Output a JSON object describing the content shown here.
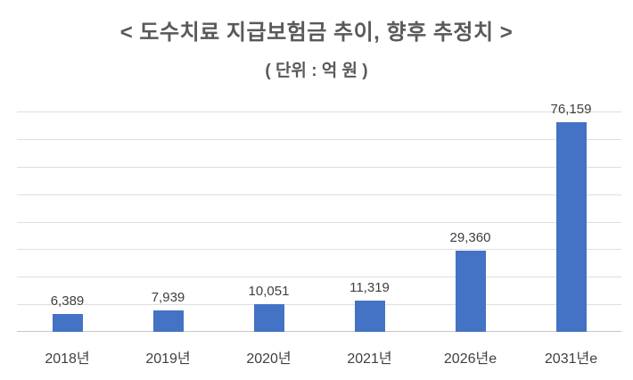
{
  "chart": {
    "title": "< 도수치료 지급보험금 추이, 향후 추정치 >",
    "subtitle": "( 단위 : 억 원 )"
  },
  "chart_data": {
    "type": "bar",
    "title": "< 도수치료 지급보험금 추이, 향후 추정치 >",
    "subtitle": "( 단위 : 억 원 )",
    "categories": [
      "2018년",
      "2019년",
      "2020년",
      "2021년",
      "2026년e",
      "2031년e"
    ],
    "values": [
      6389,
      7939,
      10051,
      11319,
      29360,
      76159
    ],
    "value_labels": [
      "6,389",
      "7,939",
      "10,051",
      "11,319",
      "29,360",
      "76,159"
    ],
    "xlabel": "",
    "ylabel": "",
    "ylim": [
      0,
      80000
    ],
    "gridline_interval": 10000,
    "grid": true,
    "legend": "none",
    "y_axis_labels_visible": false,
    "bar_color": "#4472C4",
    "gridline_color": "#DEDEDE",
    "axis_line_color": "#C6C6C6",
    "title_color": "#595959",
    "label_color": "#3F3F3F"
  }
}
